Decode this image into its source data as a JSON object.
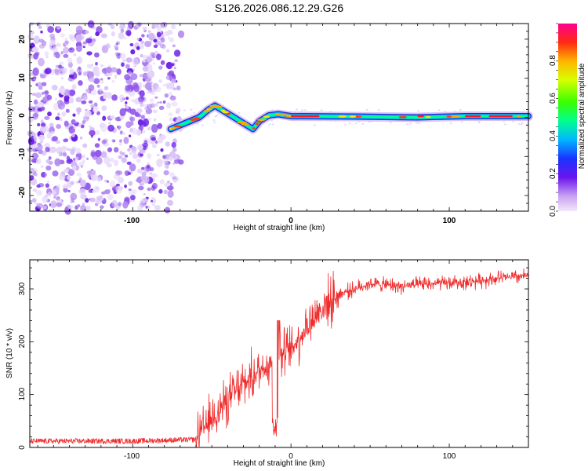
{
  "figure_title": "S126.2026.086.12.29.G26",
  "colorbar": {
    "label": "Normalized spectral amplitude",
    "range": [
      0.0,
      1.0
    ],
    "ticks": [
      "0.0",
      "0.2",
      "0.4",
      "0.6",
      "0.8"
    ]
  },
  "chart_data": [
    {
      "type": "heatmap",
      "title": "S126.2026.086.12.29.G26",
      "xlabel": "Height of straight line (km)",
      "ylabel": "Frequency (Hz)",
      "xlim": [
        -165,
        150
      ],
      "ylim": [
        -24,
        24
      ],
      "x_ticks": [
        "-100",
        "0",
        "100"
      ],
      "y_ticks": [
        "-20",
        "-10",
        "0",
        "10",
        "20"
      ],
      "noise_region_x": [
        -165,
        -73
      ],
      "signal_path": [
        {
          "x": -76,
          "f": -3
        },
        {
          "x": -70,
          "f": -2
        },
        {
          "x": -64,
          "f": -1
        },
        {
          "x": -58,
          "f": 0
        },
        {
          "x": -52,
          "f": 2
        },
        {
          "x": -48,
          "f": 3
        },
        {
          "x": -42,
          "f": 1.5
        },
        {
          "x": -36,
          "f": 0
        },
        {
          "x": -30,
          "f": -1.5
        },
        {
          "x": -24,
          "f": -3
        },
        {
          "x": -20,
          "f": -1
        },
        {
          "x": -14,
          "f": 0.5
        },
        {
          "x": -8,
          "f": 0.8
        },
        {
          "x": 0,
          "f": 0.3
        },
        {
          "x": 40,
          "f": 0.2
        },
        {
          "x": 80,
          "f": 0
        },
        {
          "x": 110,
          "f": 0.3
        },
        {
          "x": 150,
          "f": 0.3
        }
      ]
    },
    {
      "type": "line",
      "xlabel": "Height of straight line (km)",
      "ylabel": "SNR (10 * v/v)",
      "xlim": [
        -165,
        150
      ],
      "ylim": [
        0,
        355
      ],
      "x_ticks": [
        "-100",
        "0",
        "100"
      ],
      "y_ticks": [
        "0",
        "100",
        "200",
        "300"
      ],
      "series": [
        {
          "name": "SNR",
          "color": "#ef2b2b",
          "trend_x": [
            -165,
            -100,
            -60,
            -50,
            -40,
            -30,
            -20,
            -10,
            0,
            10,
            20,
            30,
            40,
            50,
            70,
            90,
            110,
            130,
            150
          ],
          "trend_y": [
            12,
            12,
            15,
            55,
            90,
            120,
            145,
            170,
            185,
            230,
            265,
            290,
            300,
            310,
            305,
            310,
            312,
            320,
            325
          ]
        }
      ]
    }
  ]
}
